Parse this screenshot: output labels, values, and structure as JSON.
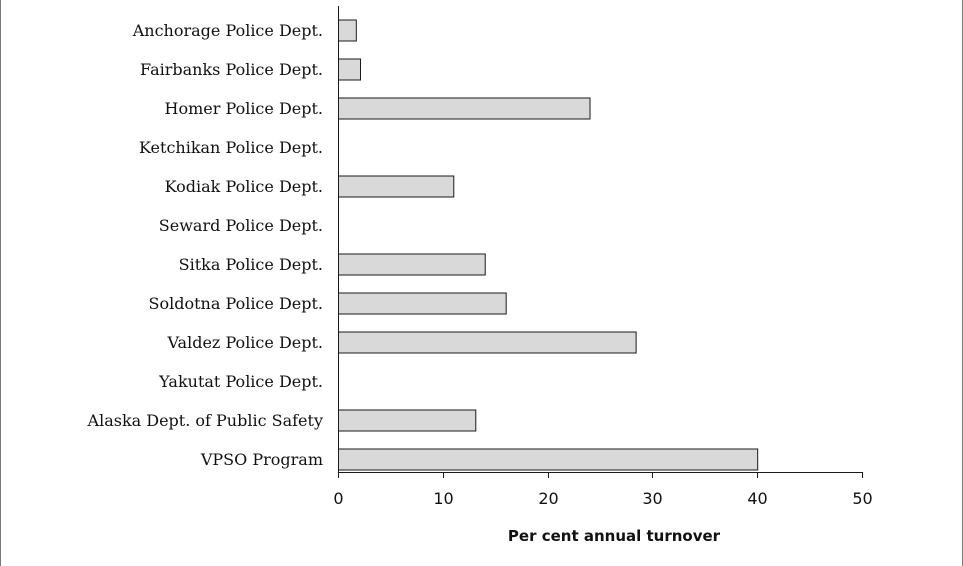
{
  "chart_data": {
    "type": "bar",
    "orientation": "horizontal",
    "categories": [
      "Anchorage Police Dept.",
      "Fairbanks Police Dept.",
      "Homer Police Dept.",
      "Ketchikan Police Dept.",
      "Kodiak Police Dept.",
      "Seward Police Dept.",
      "Sitka Police Dept.",
      "Soldotna Police Dept.",
      "Valdez Police Dept.",
      "Yakutat Police Dept.",
      "Alaska Dept. of Public Safety",
      "VPSO Program"
    ],
    "values": [
      1.7,
      2.1,
      24.0,
      0,
      11.0,
      0,
      14.0,
      16.0,
      28.4,
      0,
      13.1,
      40.0
    ],
    "xlabel": "Per cent annual turnover",
    "ylabel": "",
    "title": "",
    "xlim": [
      0,
      50
    ],
    "xticks": [
      "0",
      "10",
      "20",
      "30",
      "40",
      "50"
    ],
    "grid": false,
    "bar_color": "#d9d9d9",
    "bar_edge_color": "#1a1a1a"
  }
}
